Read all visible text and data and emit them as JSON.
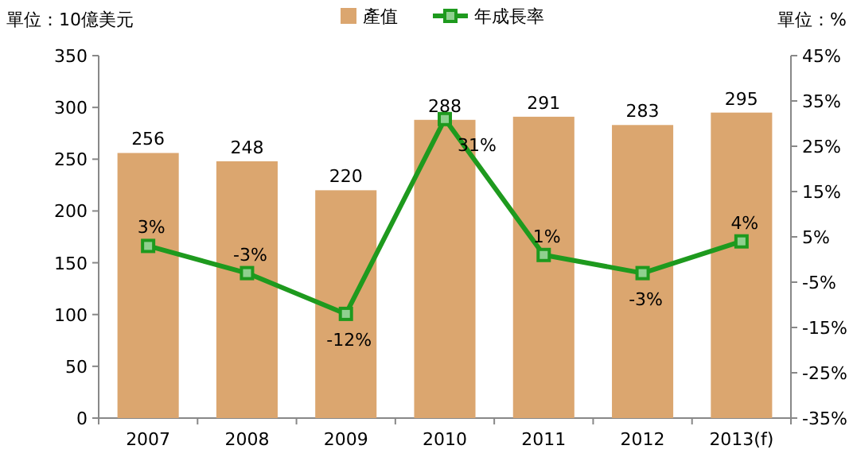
{
  "chart_data": {
    "type": "bar",
    "ylabel": "單位：10億美元",
    "y2label": "單位：%",
    "categories": [
      "2007",
      "2008",
      "2009",
      "2010",
      "2011",
      "2012",
      "2013(f)"
    ],
    "series": [
      {
        "name": "產值",
        "color": "#dba66f",
        "values": [
          256,
          248,
          220,
          288,
          291,
          283,
          295
        ]
      },
      {
        "name": "年成長率",
        "type": "line",
        "axis": "y2",
        "color": "#1e9a1e",
        "marker": "square",
        "values": [
          3,
          -3,
          -12,
          31,
          1,
          -3,
          4
        ],
        "value_labels": [
          "3%",
          "-3%",
          "-12%",
          "31%",
          "1%",
          "-3%",
          "4%"
        ]
      }
    ],
    "data_labels": true,
    "legend": "top",
    "grid": false,
    "ylim": [
      0,
      350
    ],
    "yticks": [
      0,
      50,
      100,
      150,
      200,
      250,
      300,
      350
    ],
    "y2lim": [
      -35,
      45
    ],
    "y2ticks": [
      {
        "value": -35,
        "label": "-35%"
      },
      {
        "value": -25,
        "label": "-25%"
      },
      {
        "value": -15,
        "label": "-15%"
      },
      {
        "value": -5,
        "label": "-5%"
      },
      {
        "value": 5,
        "label": "5%"
      },
      {
        "value": 15,
        "label": "15%"
      },
      {
        "value": 25,
        "label": "25%"
      },
      {
        "value": 35,
        "label": "35%"
      },
      {
        "value": 45,
        "label": "45%"
      }
    ]
  }
}
